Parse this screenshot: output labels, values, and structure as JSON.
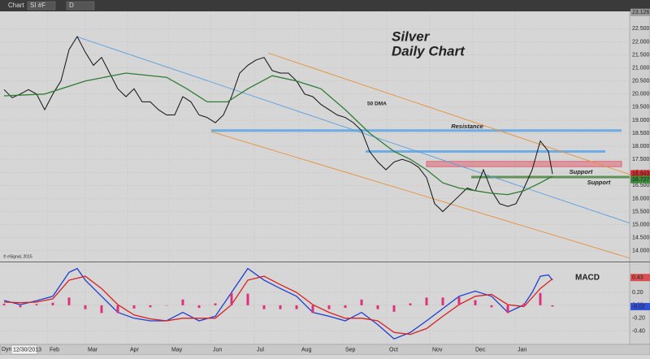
{
  "toolbar": {
    "title": "Chart",
    "symbol": "SI #F",
    "interval": "D"
  },
  "footer": {
    "mode": "Dyn",
    "date": "12/30/2013"
  },
  "chart_data": [
    {
      "type": "line",
      "title": "Silver",
      "subtitle": "Daily Chart",
      "credit": "© eSignal, 2015",
      "xlim": [
        -0.5,
        77
      ],
      "ylim": [
        13.65,
        23.35
      ],
      "grid": true,
      "xticks": [
        {
          "value": 5.3,
          "label": "Feb"
        },
        {
          "value": 10.0,
          "label": "Mar"
        },
        {
          "value": 15.2,
          "label": "Apr"
        },
        {
          "value": 20.3,
          "label": "May"
        },
        {
          "value": 25.4,
          "label": "Jun"
        },
        {
          "value": 30.8,
          "label": "Jul"
        },
        {
          "value": 36.3,
          "label": "Aug"
        },
        {
          "value": 41.7,
          "label": "Sep"
        },
        {
          "value": 47.1,
          "label": "Oct"
        },
        {
          "value": 52.4,
          "label": "Nov"
        },
        {
          "value": 57.7,
          "label": "Dec"
        },
        {
          "value": 62.9,
          "label": "Jan"
        }
      ],
      "yticks": [
        {
          "value": 14,
          "label": "14.000"
        },
        {
          "value": 14.5,
          "label": "14.500"
        },
        {
          "value": 15,
          "label": "15.000"
        },
        {
          "value": 15.5,
          "label": "15.500"
        },
        {
          "value": 16,
          "label": "16.000"
        },
        {
          "value": 16.5,
          "label": "16.500"
        },
        {
          "value": 17,
          "label": "17.000"
        },
        {
          "value": 17.5,
          "label": "17.500"
        },
        {
          "value": 18,
          "label": "18.000"
        },
        {
          "value": 18.5,
          "label": "18.500"
        },
        {
          "value": 19,
          "label": "19.000"
        },
        {
          "value": 19.5,
          "label": "19.500"
        },
        {
          "value": 20,
          "label": "20.000"
        },
        {
          "value": 20.5,
          "label": "20.500"
        },
        {
          "value": 21,
          "label": "21.000"
        },
        {
          "value": 21.5,
          "label": "21.500"
        },
        {
          "value": 22,
          "label": "22.000"
        },
        {
          "value": 22.5,
          "label": "22.500"
        }
      ],
      "series": [
        {
          "color": "#111111",
          "x": [
            0,
            1,
            2,
            3,
            4,
            5,
            6,
            7,
            8,
            9,
            10,
            11,
            12,
            13,
            14,
            15,
            16,
            17,
            18,
            19,
            20,
            21,
            22,
            23,
            24,
            25,
            26,
            27,
            28,
            29,
            30,
            31,
            32,
            33,
            34,
            35,
            36,
            37,
            38,
            39,
            40,
            41,
            42,
            43,
            44,
            45,
            46,
            47,
            48,
            49,
            50,
            51,
            52,
            53,
            54,
            55,
            56,
            57,
            58,
            59,
            60,
            61,
            62,
            63,
            64,
            65,
            66,
            67,
            67.5
          ],
          "values": [
            20.17,
            19.86,
            20.0,
            20.17,
            20.0,
            19.4,
            20.0,
            20.5,
            21.7,
            22.2,
            21.6,
            21.1,
            21.4,
            20.8,
            20.2,
            19.9,
            20.2,
            19.7,
            19.7,
            19.4,
            19.2,
            19.2,
            19.9,
            19.7,
            19.2,
            19.1,
            18.9,
            19.2,
            19.9,
            20.8,
            21.1,
            21.3,
            21.4,
            20.9,
            20.8,
            20.8,
            20.5,
            20.0,
            19.9,
            19.6,
            19.4,
            19.2,
            19.1,
            18.9,
            18.6,
            17.8,
            17.4,
            17.1,
            17.4,
            17.5,
            17.4,
            17.2,
            16.8,
            15.8,
            15.5,
            15.8,
            16.1,
            16.4,
            16.3,
            17.1,
            16.3,
            15.8,
            15.7,
            15.8,
            16.4,
            17.1,
            18.2,
            17.8,
            16.94
          ]
        },
        {
          "name": "50 DMA",
          "color": "#2e7d32",
          "x": [
            0,
            5,
            10,
            15,
            20,
            22.5,
            25,
            27.5,
            30,
            33,
            36,
            39,
            42,
            45,
            48,
            50,
            52,
            54,
            56,
            58,
            60,
            62,
            64,
            66,
            67.5
          ],
          "values": [
            19.93,
            20.0,
            20.5,
            20.8,
            20.64,
            20.2,
            19.7,
            19.7,
            20.2,
            20.7,
            20.5,
            20.2,
            19.4,
            18.5,
            17.8,
            17.5,
            17.1,
            16.6,
            16.4,
            16.3,
            16.2,
            16.15,
            16.3,
            16.6,
            16.85
          ]
        }
      ],
      "trendlines": [
        {
          "color": "#5aa0e0",
          "x": [
            9,
            77
          ],
          "values": [
            22.19,
            15.06
          ]
        },
        {
          "color": "#e8903a",
          "x": [
            32.5,
            77
          ],
          "values": [
            21.57,
            16.92
          ]
        },
        {
          "color": "#e8903a",
          "x": [
            25.5,
            77
          ],
          "values": [
            18.56,
            13.72
          ]
        }
      ],
      "levels": [
        {
          "label": "Resistance",
          "color": "#4a9fe8",
          "x": [
            25.5,
            76
          ],
          "values": [
            18.6
          ]
        },
        {
          "color": "#4a9fe8",
          "x": [
            44.5,
            74
          ],
          "values": [
            17.8
          ]
        },
        {
          "label": "Support",
          "color": "#e05060",
          "x": [
            52,
            76
          ],
          "values": [
            17.22,
            17.42
          ]
        },
        {
          "label": "Support",
          "color": "#3a7a2a",
          "x": [
            57.5,
            77
          ],
          "values": [
            16.82
          ]
        }
      ],
      "price_tags": [
        {
          "value": 23.126,
          "label": "23.126",
          "color": "#9a9a9a"
        },
        {
          "value": 16.943,
          "label": "16.943",
          "color": "#d83030"
        },
        {
          "value": 16.727,
          "label": "16.727",
          "color": "#3a8a3a"
        }
      ]
    },
    {
      "type": "line",
      "title": "MACD",
      "xlim": [
        -0.5,
        77
      ],
      "ylim": [
        -0.58,
        0.64
      ],
      "grid": true,
      "yticks": [
        {
          "value": -0.4,
          "label": "-0.40"
        },
        {
          "value": -0.2,
          "label": "-0.20"
        },
        {
          "value": 0,
          "label": "0.00"
        },
        {
          "value": 0.2,
          "label": "0.20"
        }
      ],
      "series": [
        {
          "color": "#1f3fd0",
          "x": [
            0,
            2,
            4,
            6,
            8,
            9,
            10,
            12,
            14,
            16,
            18,
            20,
            22,
            24,
            26,
            28,
            30,
            32,
            34,
            36,
            38,
            40,
            42,
            44,
            46,
            48,
            50,
            52,
            54,
            56,
            58,
            60,
            62,
            64,
            65,
            66,
            67,
            67.5
          ],
          "values": [
            0.075,
            0.01,
            0.07,
            0.14,
            0.51,
            0.57,
            0.39,
            0.14,
            -0.11,
            -0.2,
            -0.24,
            -0.24,
            -0.11,
            -0.24,
            -0.17,
            0.2,
            0.57,
            0.39,
            0.26,
            0.14,
            -0.11,
            -0.17,
            -0.24,
            -0.11,
            -0.3,
            -0.52,
            -0.42,
            -0.24,
            -0.05,
            0.14,
            0.22,
            0.14,
            -0.11,
            0.01,
            0.2,
            0.45,
            0.47,
            0.39
          ]
        },
        {
          "color": "#d82020",
          "x": [
            0,
            2,
            4,
            6,
            8,
            10,
            12,
            14,
            16,
            18,
            20,
            22,
            24,
            26,
            28,
            30,
            32,
            34,
            36,
            38,
            40,
            42,
            44,
            46,
            48,
            50,
            52,
            54,
            56,
            58,
            60,
            62,
            64,
            66,
            67.5
          ],
          "values": [
            0.05,
            0.04,
            0.05,
            0.1,
            0.39,
            0.45,
            0.26,
            0.01,
            -0.15,
            -0.21,
            -0.24,
            -0.2,
            -0.2,
            -0.2,
            0.01,
            0.39,
            0.45,
            0.32,
            0.2,
            0.01,
            -0.11,
            -0.2,
            -0.2,
            -0.24,
            -0.42,
            -0.45,
            -0.36,
            -0.17,
            0.01,
            0.14,
            0.17,
            0.01,
            -0.02,
            0.26,
            0.41
          ]
        },
        {
          "type": "bar",
          "color": "#e0307a",
          "x": [
            0,
            2,
            4,
            6,
            8,
            10,
            12,
            14,
            16,
            18,
            20,
            22,
            24,
            26,
            28,
            30,
            32,
            34,
            36,
            38,
            40,
            42,
            44,
            46,
            48,
            50,
            52,
            54,
            56,
            58,
            60,
            62,
            64,
            66,
            67.5
          ],
          "values": [
            0.025,
            -0.03,
            0.02,
            0.04,
            0.12,
            -0.06,
            -0.12,
            -0.12,
            -0.05,
            -0.03,
            0,
            0.09,
            -0.04,
            0.03,
            0.19,
            0.18,
            -0.06,
            -0.06,
            -0.06,
            -0.12,
            -0.06,
            -0.04,
            0.09,
            -0.06,
            -0.1,
            0.03,
            0.12,
            0.12,
            0.13,
            0.08,
            -0.03,
            -0.12,
            0.03,
            0.19,
            -0.02
          ]
        }
      ],
      "price_tags": [
        {
          "value": 0.43,
          "label": "0.43",
          "color": "#d85050"
        },
        {
          "value": -0.02,
          "label": "-0.02",
          "color": "#3050d8"
        }
      ]
    }
  ]
}
